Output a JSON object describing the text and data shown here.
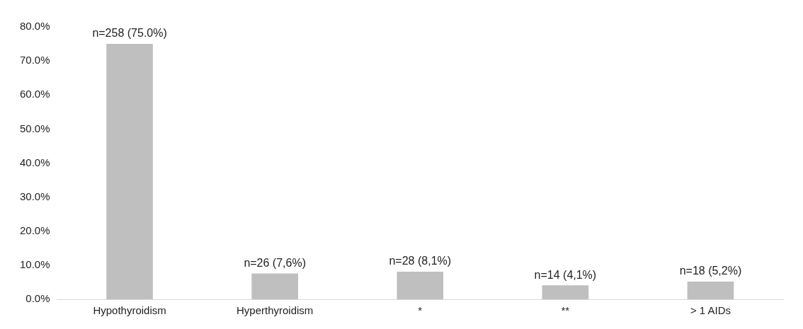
{
  "chart_data": {
    "type": "bar",
    "categories": [
      "Hypothyroidism",
      "Hyperthyroidism",
      "*",
      "**",
      "> 1 AIDs"
    ],
    "values": [
      75.0,
      7.6,
      8.1,
      4.1,
      5.2
    ],
    "value_labels": [
      "n=258 (75.0%)",
      "n=26 (7,6%)",
      "n=28 (8,1%)",
      "n=14 (4,1%)",
      "n=18 (5,2%)"
    ],
    "color": "#bfbfbf",
    "ylim": [
      0,
      80
    ],
    "yticks": [
      {
        "value": 0,
        "label": "0.0%"
      },
      {
        "value": 10,
        "label": "10.0%"
      },
      {
        "value": 20,
        "label": "20.0%"
      },
      {
        "value": 30,
        "label": "30.0%"
      },
      {
        "value": 40,
        "label": "40.0%"
      },
      {
        "value": 50,
        "label": "50.0%"
      },
      {
        "value": 60,
        "label": "60.0%"
      },
      {
        "value": 70,
        "label": "70.0%"
      },
      {
        "value": 80,
        "label": "80.0%"
      }
    ],
    "grid": false,
    "legend": false
  }
}
